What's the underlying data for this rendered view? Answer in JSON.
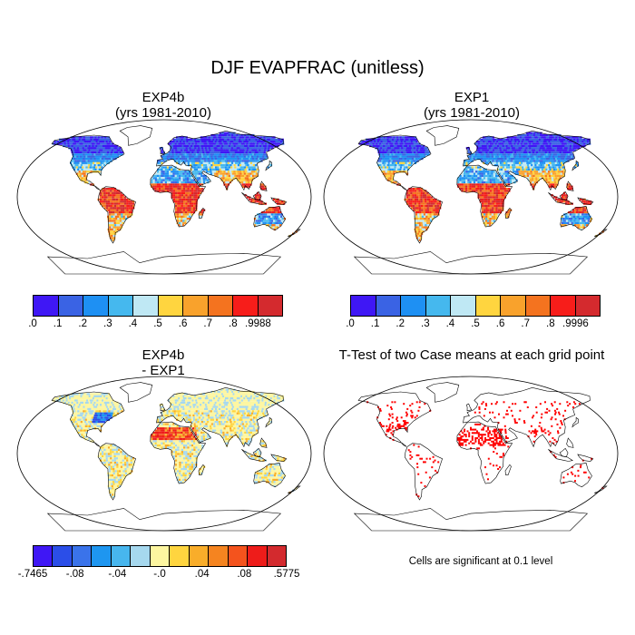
{
  "figure": {
    "title": "DJF EVAPFRAC (unitless)"
  },
  "panels": [
    {
      "id": "exp4b",
      "title_line1": "EXP4b",
      "title_line2": "(yrs 1981-2010)"
    },
    {
      "id": "exp1",
      "title_line1": "EXP1",
      "title_line2": "(yrs 1981-2010)"
    },
    {
      "id": "diff",
      "title_line1": "EXP4b",
      "title_line2": " - EXP1"
    },
    {
      "id": "ttest",
      "title_line1": "T-Test of two Case means at each grid point",
      "title_line2": ""
    }
  ],
  "colorbars": {
    "exp4b": {
      "colors": [
        "#3f17f5",
        "#3a63e4",
        "#1e90f3",
        "#45b8ee",
        "#bfe8f4",
        "#ffd53f",
        "#f9a22c",
        "#f4731f",
        "#f71d1a",
        "#d42a2e"
      ],
      "labels": [
        ".0",
        ".1",
        ".2",
        ".3",
        ".4",
        ".5",
        ".6",
        ".7",
        ".8",
        ".9988"
      ]
    },
    "exp1": {
      "colors": [
        "#3f17f5",
        "#3a63e4",
        "#1e90f3",
        "#45b8ee",
        "#bfe8f4",
        "#ffd53f",
        "#f9a22c",
        "#f4731f",
        "#f71d1a",
        "#d42a2e"
      ],
      "labels": [
        ".0",
        ".1",
        ".2",
        ".3",
        ".4",
        ".5",
        ".6",
        ".7",
        ".8",
        ".9996"
      ]
    },
    "diff": {
      "colors": [
        "#3f17f5",
        "#2b4ee8",
        "#3a73ea",
        "#1e96f0",
        "#47b6ee",
        "#a6d8ee",
        "#fdf6a0",
        "#ffd53f",
        "#f9ad2a",
        "#f58420",
        "#f4531d",
        "#ee1c1a",
        "#d32a2e"
      ],
      "labels": [
        "-.7465",
        "-.08",
        "-.04",
        "-.0",
        ".04",
        ".08",
        ".5775"
      ]
    }
  },
  "ttest": {
    "significance_color": "#ff0000",
    "note": "Cells are significant at 0.1 level"
  }
}
